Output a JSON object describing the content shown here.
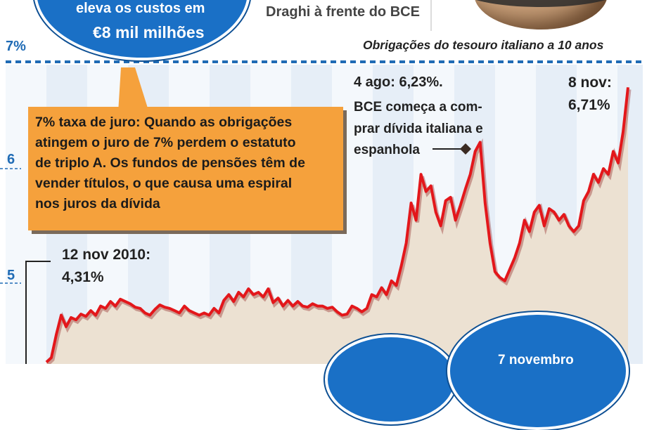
{
  "header": {
    "bubble_line1": "eleva os custos em",
    "bubble_line2": "€8 mil milhões",
    "photo_caption": "Draghi à frente do BCE",
    "chart_subtitle": "Obrigações do tesouro italiano a 10 anos"
  },
  "callout": {
    "text": "7% taxa de juro: Quando as obrigações\natingem o juro de 7% perdem o estatuto\nde triplo A. Os fundos de pensões têm de\nvender títulos, o que causa uma espiral\nnos juros da dívida"
  },
  "annotations": {
    "start_date": "12 nov 2010:",
    "start_value": "4,31%",
    "ecb_title": "4 ago: 6,23%.",
    "ecb_body": "BCE começa a com-\nprar dívida italiana e\nespanhola",
    "end_date": "8 nov:",
    "end_value": "6,71%",
    "bottom_bubble": "7 novembro"
  },
  "colors": {
    "line": "#e3171b",
    "area": "#ece1d2",
    "axis_blue": "#1f6bb5",
    "bubble_blue": "#1a70c6",
    "callout_orange": "#f5a13c"
  },
  "chart_data": {
    "type": "line",
    "title": "Obrigações do tesouro italiano a 10 anos",
    "ylabel": "",
    "y_tick_labels": [
      "7%",
      "6",
      "5"
    ],
    "ylim": [
      4.0,
      7.0
    ],
    "x_start": "2010-11-12",
    "x_end": "2011-11-08",
    "series": [
      {
        "values": [
          4.31,
          4.35,
          4.55,
          4.72,
          4.62,
          4.7,
          4.68,
          4.73,
          4.71,
          4.76,
          4.72,
          4.8,
          4.78,
          4.84,
          4.8,
          4.86,
          4.84,
          4.82,
          4.79,
          4.78,
          4.74,
          4.72,
          4.77,
          4.81,
          4.79,
          4.78,
          4.76,
          4.74,
          4.8,
          4.76,
          4.74,
          4.72,
          4.74,
          4.72,
          4.78,
          4.74,
          4.85,
          4.9,
          4.84,
          4.92,
          4.88,
          4.95,
          4.9,
          4.92,
          4.88,
          4.95,
          4.83,
          4.87,
          4.8,
          4.85,
          4.8,
          4.84,
          4.8,
          4.79,
          4.82,
          4.8,
          4.8,
          4.78,
          4.79,
          4.75,
          4.72,
          4.73,
          4.8,
          4.78,
          4.75,
          4.78,
          4.9,
          4.88,
          4.96,
          4.9,
          5.02,
          4.98,
          5.15,
          5.35,
          5.7,
          5.55,
          5.95,
          5.8,
          5.85,
          5.62,
          5.5,
          5.72,
          5.75,
          5.55,
          5.68,
          5.82,
          5.95,
          6.15,
          6.23,
          5.7,
          5.35,
          5.1,
          5.05,
          5.02,
          5.12,
          5.22,
          5.35,
          5.55,
          5.45,
          5.62,
          5.68,
          5.5,
          5.65,
          5.62,
          5.55,
          5.6,
          5.5,
          5.45,
          5.5,
          5.72,
          5.8,
          5.95,
          5.88,
          6.0,
          5.95,
          6.15,
          6.05,
          6.32,
          6.71
        ]
      }
    ],
    "point_labels": [
      {
        "index": 0,
        "text": "12 nov 2010: 4,31%"
      },
      {
        "index": 88,
        "text": "4 ago: 6,23%"
      },
      {
        "index": 118,
        "text": "8 nov: 6,71%"
      }
    ],
    "grid": false
  }
}
